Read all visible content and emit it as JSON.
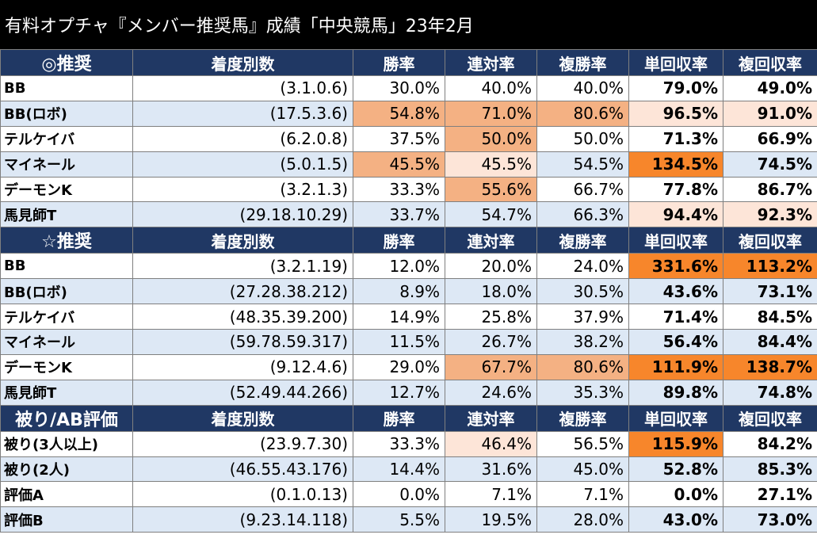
{
  "title": "有料オプチャ『メンバー推奨馬』成績「中央競馬」23年2月",
  "columns": [
    "着度別数",
    "勝率",
    "連対率",
    "複勝率",
    "単回収率",
    "複回収率"
  ],
  "sections": [
    {
      "label": "◎推奨",
      "rows": [
        {
          "name": "BB",
          "record": "(3.1.0.6)",
          "win": "30.0%",
          "place2": "40.0%",
          "place3": "40.0%",
          "tan": "79.0%",
          "fuku": "49.0%"
        },
        {
          "name": "BB(ロボ)",
          "record": "(17.5.3.6)",
          "win": "54.8%",
          "place2": "71.0%",
          "place3": "80.6%",
          "tan": "96.5%",
          "fuku": "91.0%"
        },
        {
          "name": "テルケイバ",
          "record": "(6.2.0.8)",
          "win": "37.5%",
          "place2": "50.0%",
          "place3": "50.0%",
          "tan": "71.3%",
          "fuku": "66.9%"
        },
        {
          "name": "マイネール",
          "record": "(5.0.1.5)",
          "win": "45.5%",
          "place2": "45.5%",
          "place3": "54.5%",
          "tan": "134.5%",
          "fuku": "74.5%"
        },
        {
          "name": "デーモンK",
          "record": "(3.2.1.3)",
          "win": "33.3%",
          "place2": "55.6%",
          "place3": "66.7%",
          "tan": "77.8%",
          "fuku": "86.7%"
        },
        {
          "name": "馬見師T",
          "record": "(29.18.10.29)",
          "win": "33.7%",
          "place2": "54.7%",
          "place3": "66.3%",
          "tan": "94.4%",
          "fuku": "92.3%"
        }
      ]
    },
    {
      "label": "☆推奨",
      "rows": [
        {
          "name": "BB",
          "record": "(3.2.1.19)",
          "win": "12.0%",
          "place2": "20.0%",
          "place3": "24.0%",
          "tan": "331.6%",
          "fuku": "113.2%"
        },
        {
          "name": "BB(ロボ)",
          "record": "(27.28.38.212)",
          "win": "8.9%",
          "place2": "18.0%",
          "place3": "30.5%",
          "tan": "43.6%",
          "fuku": "73.1%"
        },
        {
          "name": "テルケイバ",
          "record": "(48.35.39.200)",
          "win": "14.9%",
          "place2": "25.8%",
          "place3": "37.9%",
          "tan": "71.4%",
          "fuku": "84.5%"
        },
        {
          "name": "マイネール",
          "record": "(59.78.59.317)",
          "win": "11.5%",
          "place2": "26.7%",
          "place3": "38.2%",
          "tan": "56.4%",
          "fuku": "84.4%"
        },
        {
          "name": "デーモンK",
          "record": "(9.12.4.6)",
          "win": "29.0%",
          "place2": "67.7%",
          "place3": "80.6%",
          "tan": "111.9%",
          "fuku": "138.7%"
        },
        {
          "name": "馬見師T",
          "record": "(52.49.44.266)",
          "win": "12.7%",
          "place2": "24.6%",
          "place3": "35.3%",
          "tan": "89.8%",
          "fuku": "74.8%"
        }
      ]
    },
    {
      "label": "被り/AB評価",
      "rows": [
        {
          "name": "被り(3人以上)",
          "record": "(23.9.7.30)",
          "win": "33.3%",
          "place2": "46.4%",
          "place3": "56.5%",
          "tan": "115.9%",
          "fuku": "84.2%"
        },
        {
          "name": "被り(2人)",
          "record": "(46.55.43.176)",
          "win": "14.4%",
          "place2": "31.6%",
          "place3": "45.0%",
          "tan": "52.8%",
          "fuku": "85.3%"
        },
        {
          "name": "評価A",
          "record": "(0.1.0.13)",
          "win": "0.0%",
          "place2": "7.1%",
          "place3": "7.1%",
          "tan": "0.0%",
          "fuku": "27.1%"
        },
        {
          "name": "評価B",
          "record": "(9.23.14.118)",
          "win": "5.5%",
          "place2": "19.5%",
          "place3": "28.0%",
          "tan": "43.0%",
          "fuku": "73.0%"
        }
      ]
    }
  ]
}
